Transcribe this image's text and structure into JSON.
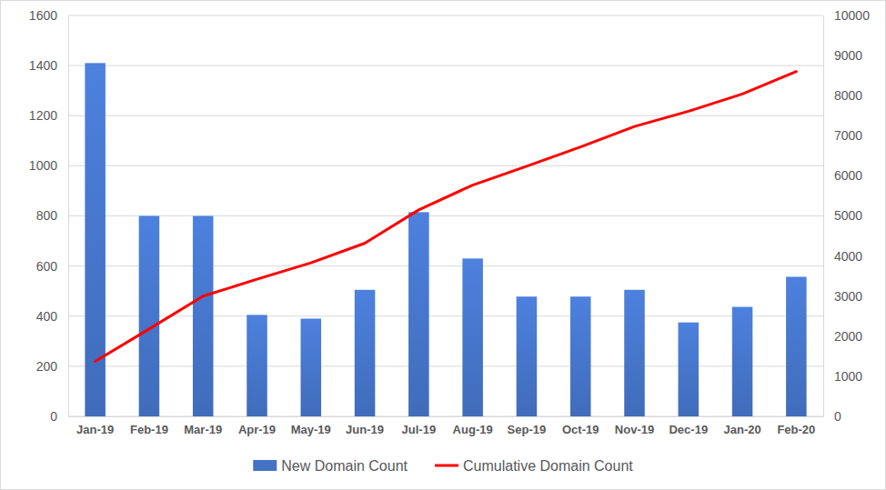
{
  "chart_data": {
    "type": "bar",
    "categories": [
      "Jan-19",
      "Feb-19",
      "Mar-19",
      "Apr-19",
      "May-19",
      "Jun-19",
      "Jul-19",
      "Aug-19",
      "Sep-19",
      "Oct-19",
      "Nov-19",
      "Dec-19",
      "Jan-20",
      "Feb-20"
    ],
    "series": [
      {
        "name": "New Domain Count",
        "type": "bar",
        "color": "#4472c4",
        "values": [
          1410,
          800,
          800,
          405,
          390,
          505,
          815,
          630,
          478,
          478,
          505,
          375,
          437,
          557
        ]
      },
      {
        "name": "Cumulative Domain Count",
        "type": "line",
        "axis": "y2",
        "color": "#ff0000",
        "values": [
          1370,
          2180,
          3000,
          3420,
          3830,
          4320,
          5150,
          5770,
          6240,
          6720,
          7230,
          7610,
          8040,
          8600
        ]
      }
    ],
    "ylim": [
      0,
      1600
    ],
    "yticks": [
      0,
      200,
      400,
      600,
      800,
      1000,
      1200,
      1400,
      1600
    ],
    "y2lim": [
      0,
      10000
    ],
    "y2ticks": [
      0,
      1000,
      2000,
      3000,
      4000,
      5000,
      6000,
      7000,
      8000,
      9000,
      10000
    ],
    "grid": true,
    "legend": "bottom"
  }
}
